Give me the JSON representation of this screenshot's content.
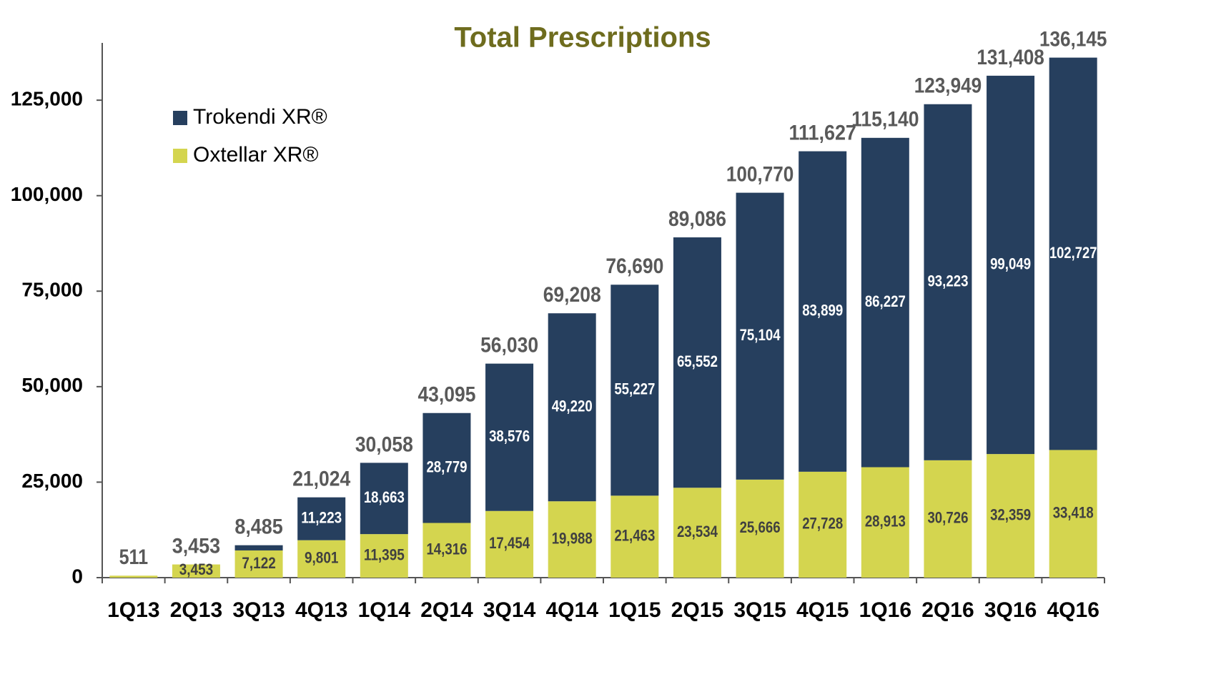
{
  "chart_data": {
    "type": "stacked-bar",
    "title": "Total Prescriptions",
    "categories": [
      "1Q13",
      "2Q13",
      "3Q13",
      "4Q13",
      "1Q14",
      "2Q14",
      "3Q14",
      "4Q14",
      "1Q15",
      "2Q15",
      "3Q15",
      "4Q15",
      "1Q16",
      "2Q16",
      "3Q16",
      "4Q16"
    ],
    "series": [
      {
        "name": "Oxtellar XR®",
        "color": "#d4d54f",
        "values": [
          511,
          3453,
          7122,
          9801,
          11395,
          14316,
          17454,
          19988,
          21463,
          23534,
          25666,
          27728,
          28913,
          30726,
          32359,
          33418
        ],
        "value_labels": [
          null,
          "3,453",
          "7,122",
          "9,801",
          "11,395",
          "14,316",
          "17,454",
          "19,988",
          "21,463",
          "23,534",
          "25,666",
          "27,728",
          "28,913",
          "30,726",
          "32,359",
          "33,418"
        ]
      },
      {
        "name": "Trokendi XR®",
        "color": "#263f5e",
        "values": [
          null,
          null,
          1363,
          11223,
          18663,
          28779,
          38576,
          49220,
          55227,
          65552,
          75104,
          83899,
          86227,
          93223,
          99049,
          102727
        ],
        "value_labels": [
          null,
          null,
          null,
          "11,223",
          "18,663",
          "28,779",
          "38,576",
          "49,220",
          "55,227",
          "65,552",
          "75,104",
          "83,899",
          "86,227",
          "93,223",
          "99,049",
          "102,727"
        ]
      }
    ],
    "totals": {
      "values": [
        511,
        3453,
        8485,
        21024,
        30058,
        43095,
        56030,
        69208,
        76690,
        89086,
        100770,
        111627,
        115140,
        123949,
        131408,
        136145
      ],
      "value_labels": [
        "511",
        "3,453",
        "8,485",
        "21,024",
        "30,058",
        "43,095",
        "56,030",
        "69,208",
        "76,690",
        "89,086",
        "100,770",
        "111,627",
        "115,140",
        "123,949",
        "131,408",
        "136,145"
      ]
    },
    "ylim": [
      0,
      140000
    ],
    "yticks": [
      0,
      {
        "value": 25000,
        "label": "25,000"
      },
      {
        "value": 50000,
        "label": "50,000"
      },
      {
        "value": 75000,
        "label": "75,000"
      },
      {
        "value": 100000,
        "label": "100,000"
      },
      {
        "value": 125000,
        "label": "125,000"
      }
    ],
    "legend": "top-left"
  }
}
